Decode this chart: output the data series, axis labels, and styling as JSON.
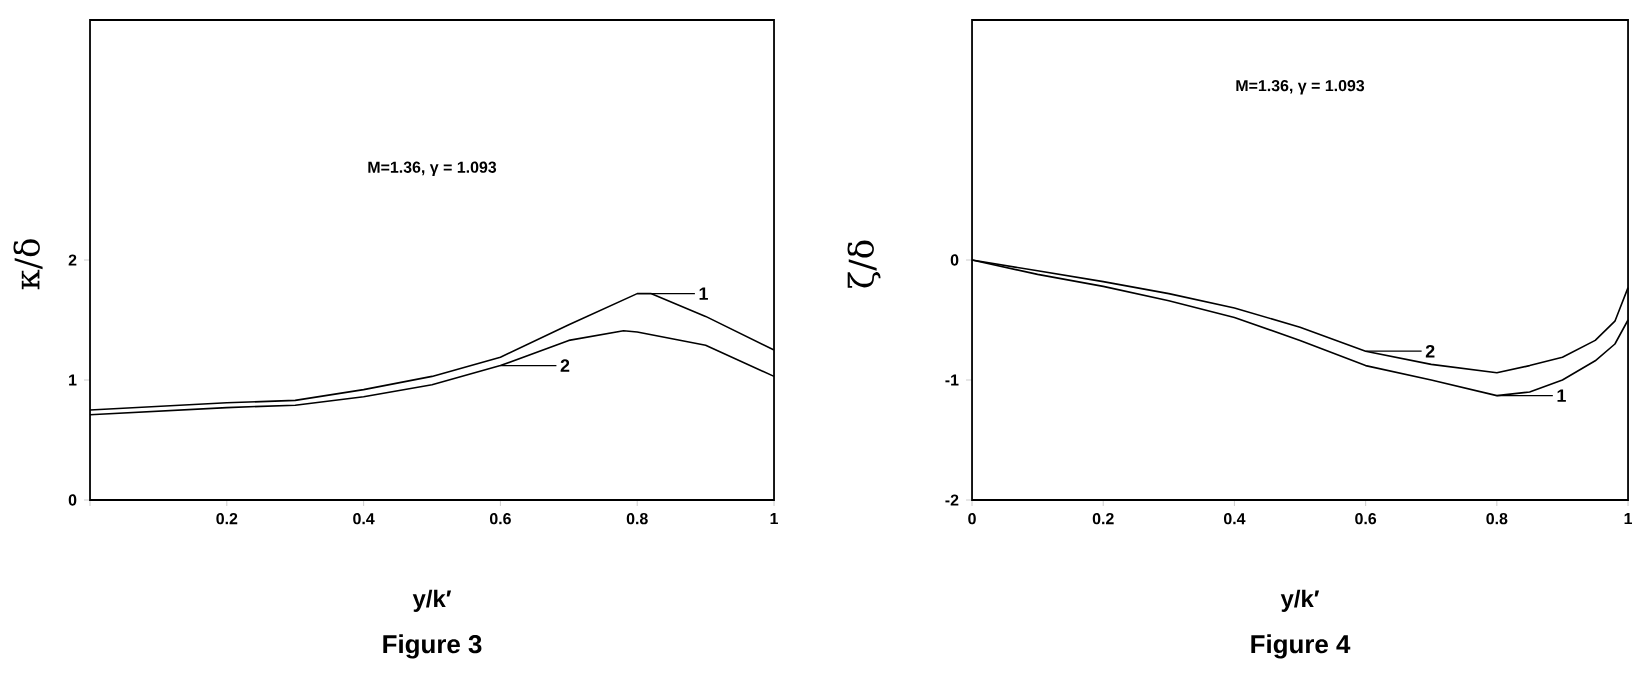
{
  "chart_data": [
    {
      "type": "line",
      "title": "Figure 3",
      "xlabel": "y/k′",
      "ylabel": "κ/δ",
      "annotations": [
        "M=1.36, γ = 1.093"
      ],
      "line_style": "solid",
      "legend": "right",
      "xlim": [
        0,
        1
      ],
      "ylim": [
        0,
        4
      ],
      "xticks": [
        {
          "value": 0,
          "label": null
        },
        0.2,
        0.4,
        0.6,
        0.8,
        1
      ],
      "yticks": [
        0,
        1,
        2
      ],
      "series": [
        {
          "name": "1",
          "color": "#000000",
          "x": [
            0,
            0.2,
            0.3,
            0.4,
            0.5,
            0.6,
            0.7,
            0.8,
            0.82,
            0.9,
            1
          ],
          "values": [
            0.75,
            0.81,
            0.83,
            0.92,
            1.03,
            1.19,
            1.46,
            1.72,
            1.72,
            1.53,
            1.25
          ]
        },
        {
          "name": "2",
          "color": "#000000",
          "x": [
            0,
            0.2,
            0.3,
            0.4,
            0.5,
            0.6,
            0.7,
            0.78,
            0.8,
            0.9,
            1
          ],
          "values": [
            0.71,
            0.77,
            0.79,
            0.86,
            0.96,
            1.12,
            1.33,
            1.41,
            1.4,
            1.29,
            1.03
          ]
        }
      ]
    },
    {
      "type": "line",
      "title": "Figure 4",
      "xlabel": "y/k′",
      "ylabel": "ζ/δ",
      "annotations": [
        "M=1.36, γ = 1.093"
      ],
      "line_style": "solid",
      "legend": "bottom right",
      "xlim": [
        0,
        1
      ],
      "ylim": [
        -2,
        2
      ],
      "xticks": [
        0,
        0.2,
        0.4,
        0.6,
        0.8,
        1
      ],
      "yticks": [
        -2,
        -1,
        0
      ],
      "series": [
        {
          "name": "1",
          "color": "#000000",
          "x": [
            0,
            0.1,
            0.2,
            0.3,
            0.4,
            0.5,
            0.6,
            0.7,
            0.8,
            0.85,
            0.9,
            0.95,
            0.98,
            1
          ],
          "values": [
            0,
            -0.12,
            -0.22,
            -0.34,
            -0.48,
            -0.67,
            -0.88,
            -1.0,
            -1.13,
            -1.1,
            -1.0,
            -0.84,
            -0.7,
            -0.5
          ]
        },
        {
          "name": "2",
          "color": "#000000",
          "x": [
            0,
            0.1,
            0.2,
            0.3,
            0.4,
            0.5,
            0.6,
            0.7,
            0.8,
            0.85,
            0.9,
            0.95,
            0.98,
            1
          ],
          "values": [
            0,
            -0.09,
            -0.18,
            -0.28,
            -0.4,
            -0.56,
            -0.76,
            -0.87,
            -0.94,
            -0.88,
            -0.81,
            -0.67,
            -0.51,
            -0.23
          ]
        }
      ]
    }
  ]
}
